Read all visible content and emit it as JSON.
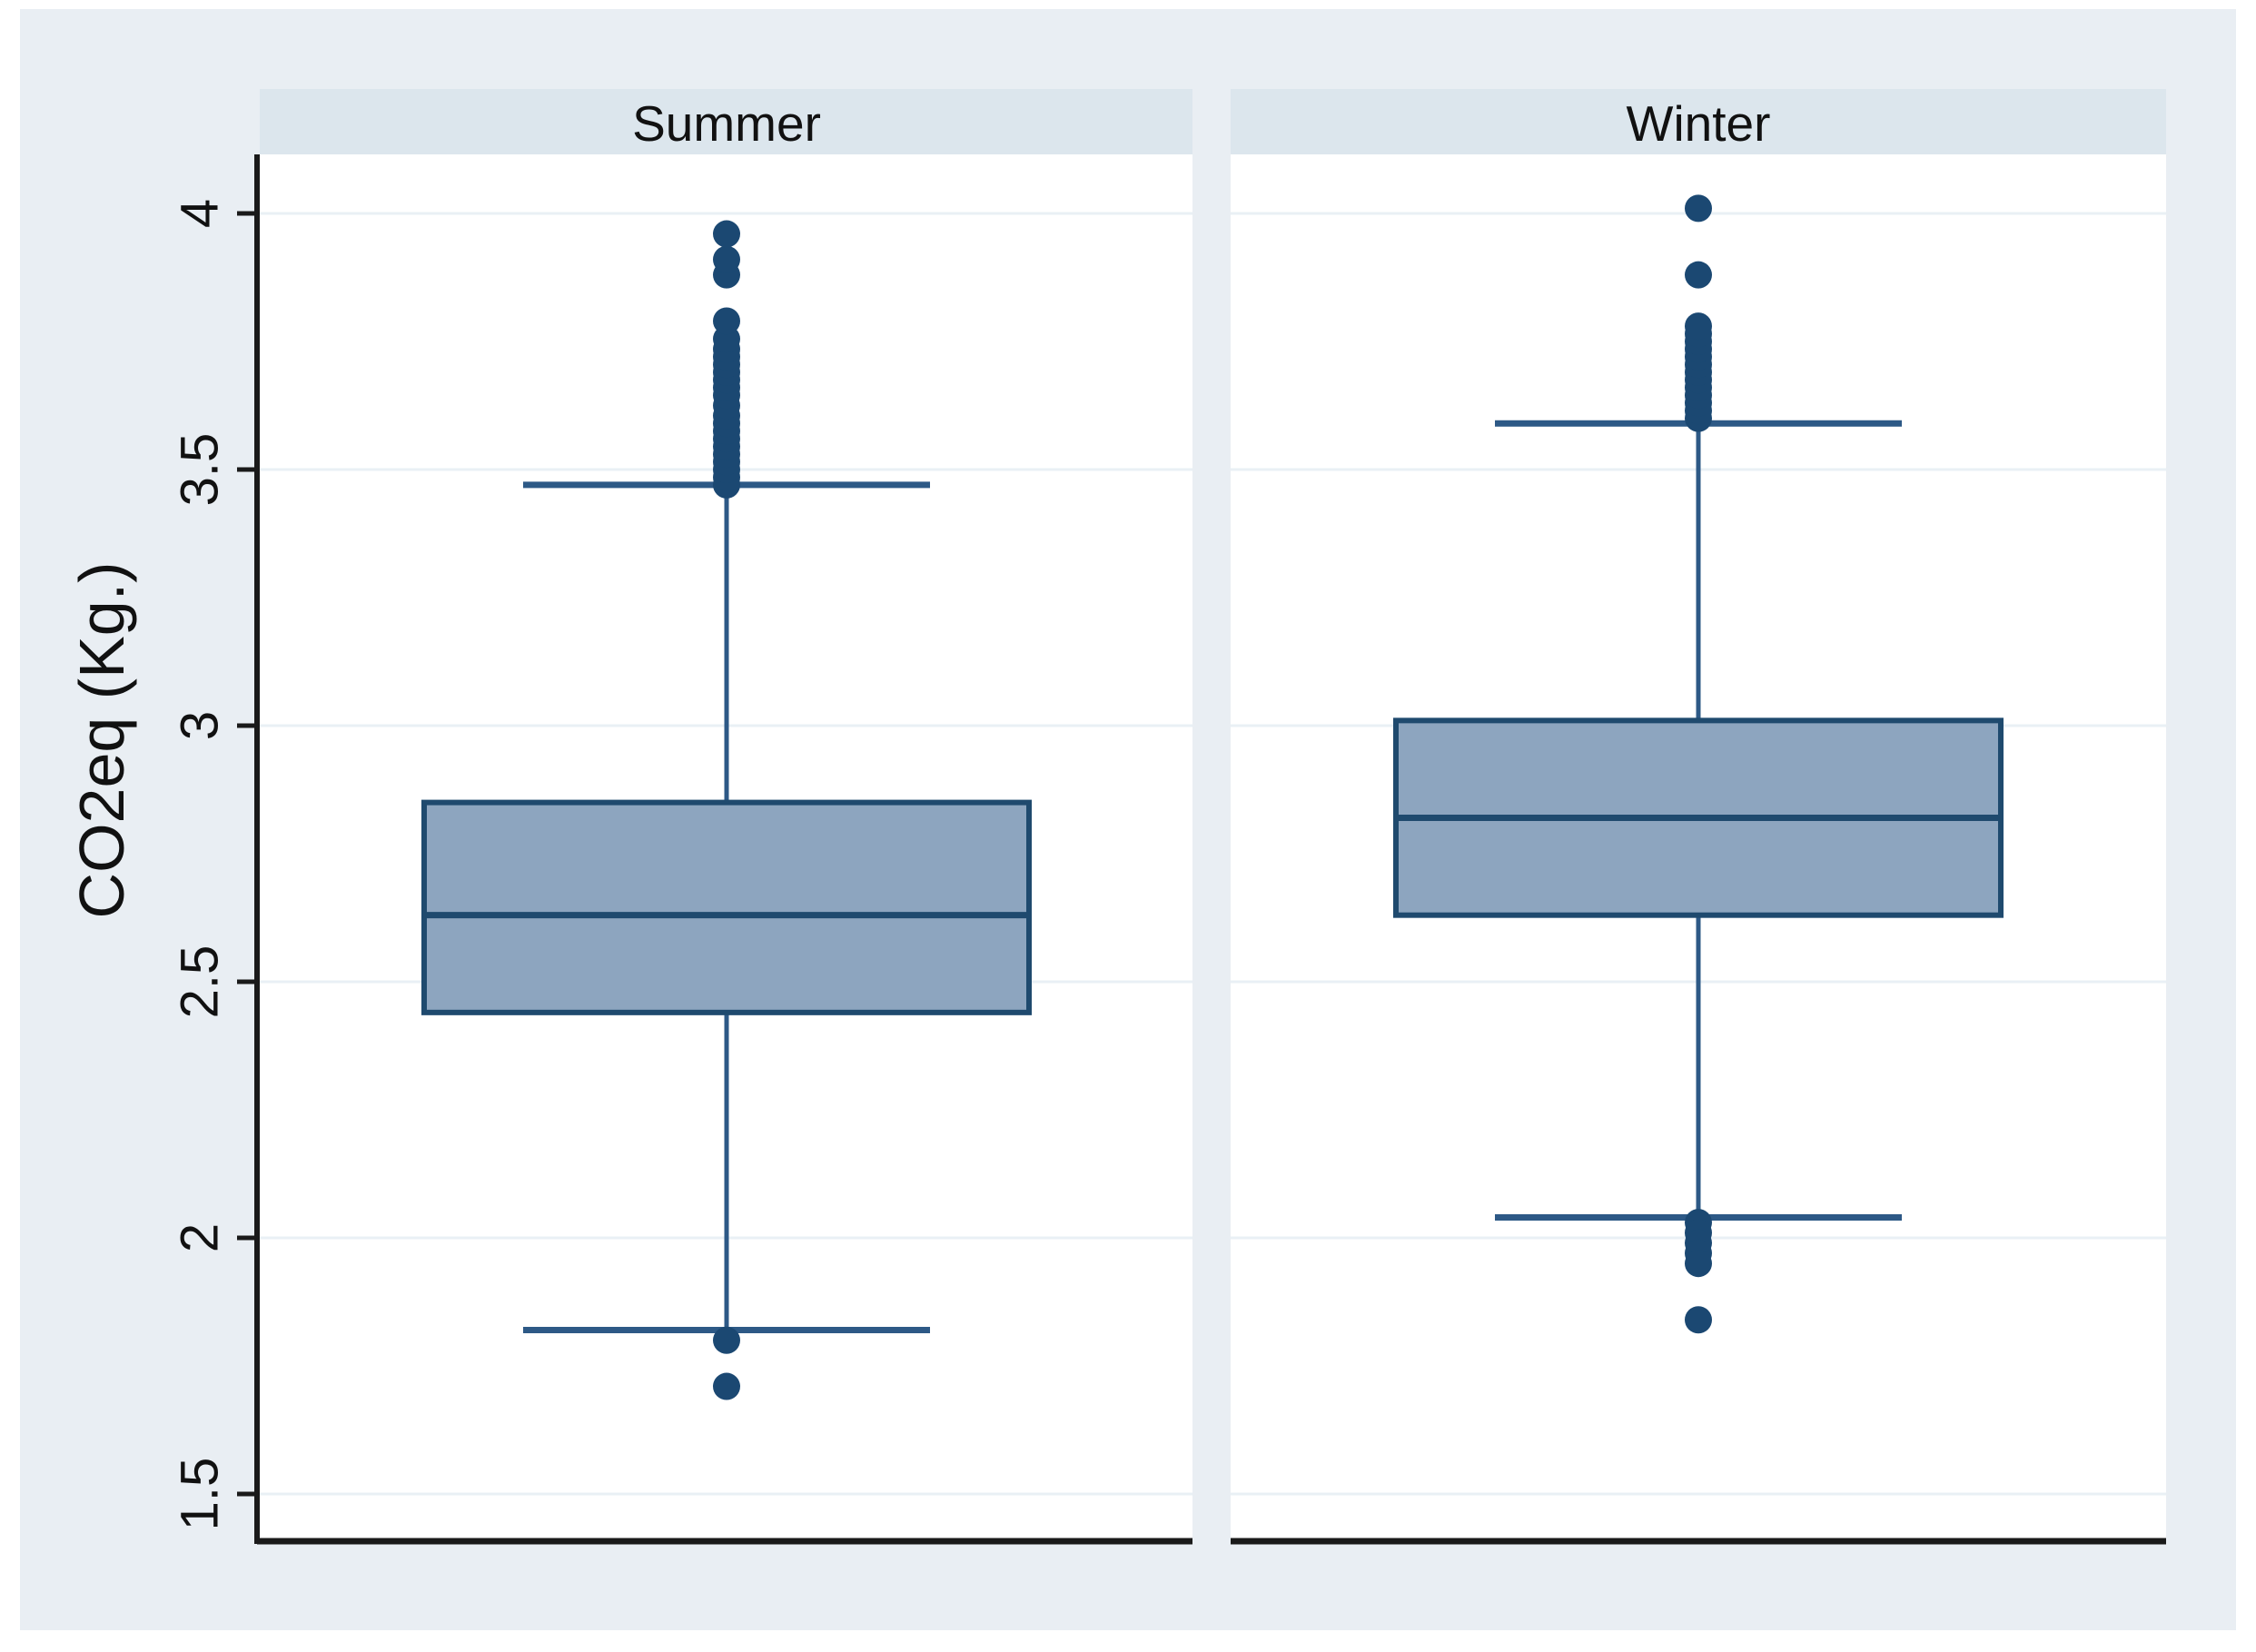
{
  "colors": {
    "page_background": "#ffffff",
    "graph_background": "#e9eef3",
    "panel_header_band": "#dce6ed",
    "plot_background": "#ffffff",
    "gridline": "#e9f0f5",
    "box_fill": "#8da5bf",
    "box_border": "#1f4a6e",
    "median_line": "#1f4a6e",
    "whisker": "#2d5986",
    "outlier_dot": "#1b4872",
    "axis_line": "#1a1a1a",
    "text": "#111111"
  },
  "chart_data": {
    "type": "box",
    "title": "",
    "ylabel": "CO2eq (Kg.)",
    "xlabel": "",
    "ylim": [
      1.41,
      4.12
    ],
    "grid": true,
    "y_ticks": [
      {
        "value": 4,
        "label": "4"
      },
      {
        "value": 3.5,
        "label": "3.5"
      },
      {
        "value": 3,
        "label": "3"
      },
      {
        "value": 2.5,
        "label": "2.5"
      },
      {
        "value": 2,
        "label": "2"
      },
      {
        "value": 1.5,
        "label": "1.5"
      }
    ],
    "panels": [
      {
        "label": "Summer",
        "q1": 2.44,
        "median": 2.63,
        "q3": 2.85,
        "whisker_low": 1.82,
        "whisker_high": 3.47,
        "outliers_high": [
          3.47,
          3.485,
          3.5,
          3.515,
          3.53,
          3.545,
          3.56,
          3.575,
          3.59,
          3.605,
          3.625,
          3.645,
          3.66,
          3.675,
          3.69,
          3.705,
          3.72,
          3.735,
          3.755,
          3.79,
          3.88,
          3.91,
          3.96
        ],
        "outliers_low": [
          1.8,
          1.71
        ]
      },
      {
        "label": "Winter",
        "q1": 2.63,
        "median": 2.82,
        "q3": 3.01,
        "whisker_low": 2.04,
        "whisker_high": 3.59,
        "outliers_high": [
          3.6,
          3.615,
          3.63,
          3.645,
          3.66,
          3.675,
          3.69,
          3.705,
          3.72,
          3.735,
          3.75,
          3.765,
          3.78,
          3.88,
          4.01
        ],
        "outliers_low": [
          2.03,
          2.01,
          1.99,
          1.97,
          1.95,
          1.84
        ]
      }
    ]
  }
}
